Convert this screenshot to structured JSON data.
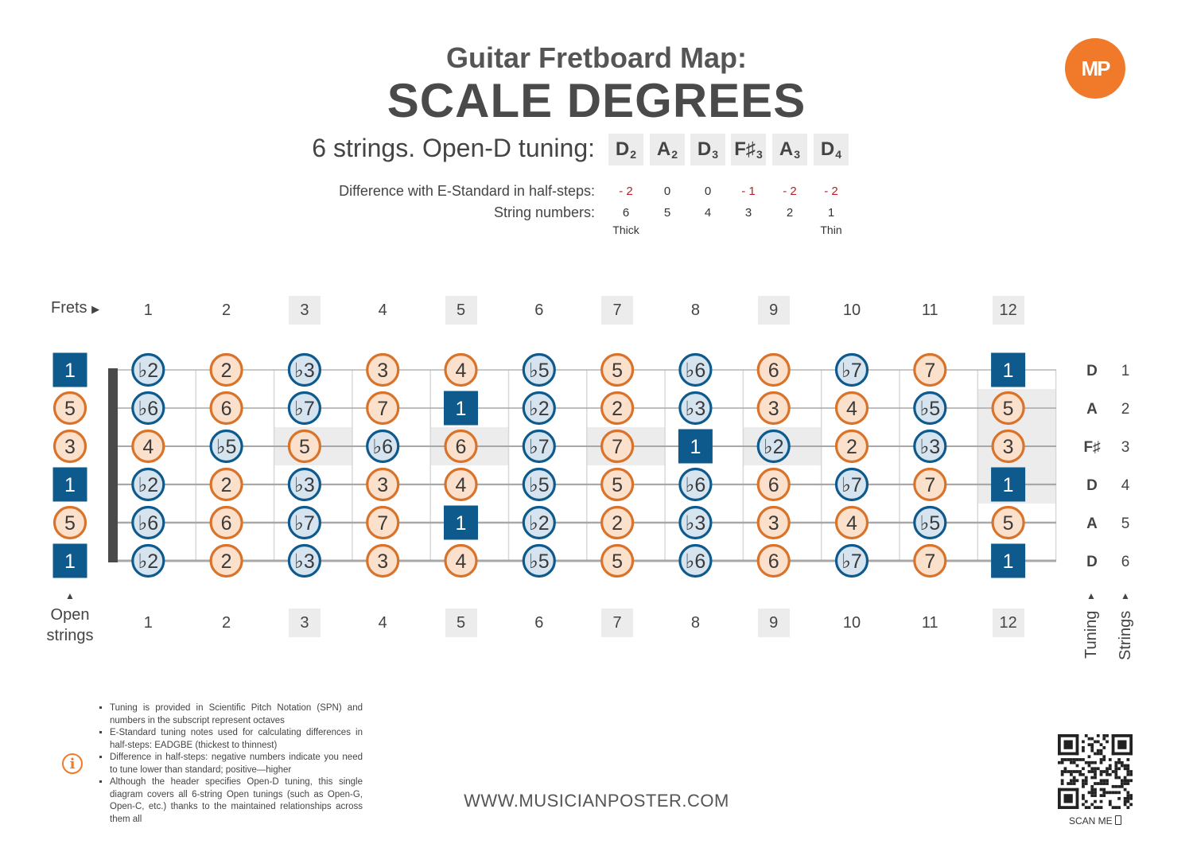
{
  "header": {
    "title_line1": "Guitar Fretboard Map:",
    "title_line2": "SCALE DEGREES",
    "logo_text": "MP",
    "tuning_label": "6 strings. Open-D tuning:"
  },
  "tuning": [
    {
      "note": "D",
      "octave": "2",
      "diff": "-2",
      "string": "6",
      "sub": "Thick"
    },
    {
      "note": "A",
      "octave": "2",
      "diff": "0",
      "string": "5",
      "sub": ""
    },
    {
      "note": "D",
      "octave": "3",
      "diff": "0",
      "string": "4",
      "sub": ""
    },
    {
      "note": "F♯",
      "octave": "3",
      "diff": "-1",
      "string": "3",
      "sub": ""
    },
    {
      "note": "A",
      "octave": "3",
      "diff": "-2",
      "string": "2",
      "sub": ""
    },
    {
      "note": "D",
      "octave": "4",
      "diff": "-2",
      "string": "1",
      "sub": "Thin"
    }
  ],
  "labels": {
    "difference": "Difference with E-Standard in half-steps:",
    "string_numbers": "String numbers:",
    "frets": "Frets",
    "open_strings_line1": "Open",
    "open_strings_line2": "strings",
    "tuning_vertical": "Tuning",
    "strings_vertical": "Strings"
  },
  "fretboard": {
    "fret_numbers": [
      "1",
      "2",
      "3",
      "4",
      "5",
      "6",
      "7",
      "8",
      "9",
      "10",
      "11",
      "12"
    ],
    "marked_frets": [
      3,
      5,
      7,
      9,
      12
    ],
    "right_side": [
      {
        "note": "D",
        "string": "1"
      },
      {
        "note": "A",
        "string": "2"
      },
      {
        "note": "F♯",
        "string": "3"
      },
      {
        "note": "D",
        "string": "4"
      },
      {
        "note": "A",
        "string": "5"
      },
      {
        "note": "D",
        "string": "6"
      }
    ],
    "rows": [
      [
        "1",
        "b2",
        "2",
        "b3",
        "3",
        "4",
        "b5",
        "5",
        "b6",
        "6",
        "b7",
        "7",
        "1"
      ],
      [
        "5",
        "b6",
        "6",
        "b7",
        "7",
        "1",
        "b2",
        "2",
        "b3",
        "3",
        "4",
        "b5",
        "5"
      ],
      [
        "3",
        "4",
        "b5",
        "5",
        "b6",
        "6",
        "b7",
        "7",
        "1",
        "b2",
        "2",
        "b3",
        "3"
      ],
      [
        "1",
        "b2",
        "2",
        "b3",
        "3",
        "4",
        "b5",
        "5",
        "b6",
        "6",
        "b7",
        "7",
        "1"
      ],
      [
        "5",
        "b6",
        "6",
        "b7",
        "7",
        "1",
        "b2",
        "2",
        "b3",
        "3",
        "4",
        "b5",
        "5"
      ],
      [
        "1",
        "b2",
        "2",
        "b3",
        "3",
        "4",
        "b5",
        "5",
        "b6",
        "6",
        "b7",
        "7",
        "1"
      ]
    ],
    "colors": {
      "root_fill": "#0e5a8c",
      "minor_fill": "#d6e4f0",
      "minor_stroke": "#0e5a8c",
      "major_fill": "#fbe0cc",
      "major_stroke": "#d9732a",
      "accent": "#f07a2a",
      "red": "#b5202a"
    }
  },
  "footer": {
    "notes": [
      "Tuning is provided in Scientific Pitch Notation (SPN) and numbers in the subscript represent octaves",
      "E-Standard tuning notes used for calculating differences in half-steps: EADGBE (thickest to thinnest)",
      "Difference in half-steps: negative numbers indicate you need to tune lower than standard; positive—higher",
      "Although the header specifies Open-D tuning, this single diagram covers all 6-string Open tunings (such as Open-G, Open-C, etc.) thanks to the maintained relationships across them all"
    ],
    "info_icon": "i",
    "website": "WWW.MUSICIANPOSTER.COM",
    "scan_me": "SCAN ME"
  }
}
